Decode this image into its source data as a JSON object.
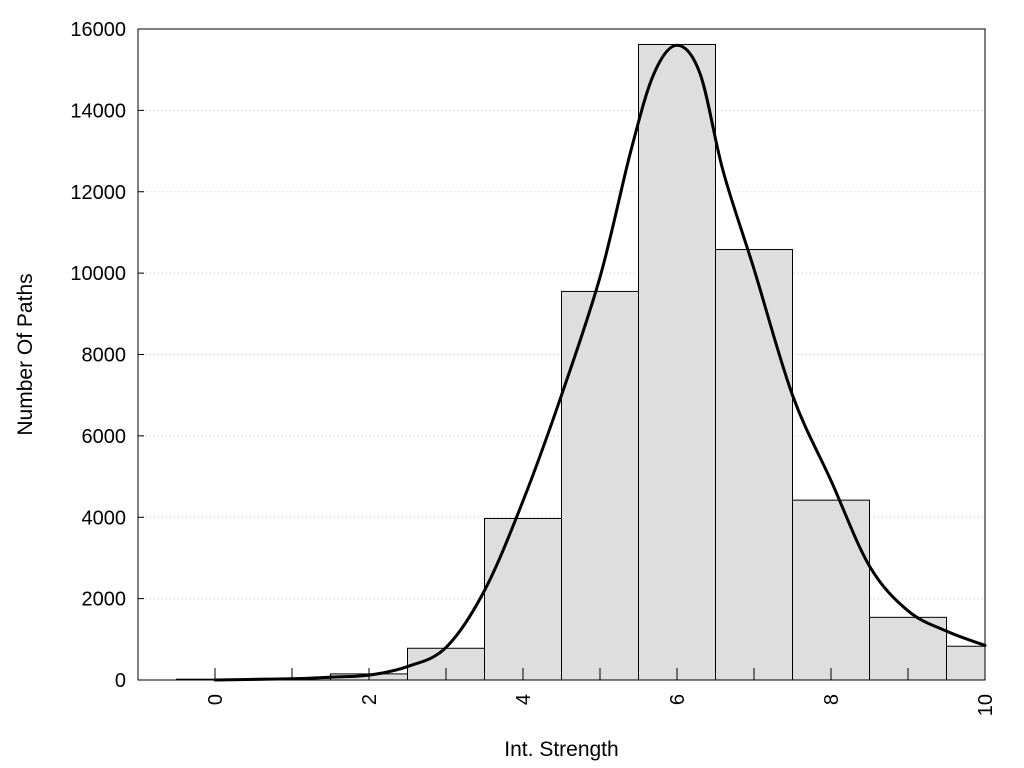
{
  "chart_data": {
    "type": "bar",
    "title": "",
    "xlabel": "Int. Strength",
    "ylabel": "Number Of Paths",
    "xlim": [
      -1,
      10
    ],
    "ylim": [
      0,
      16000
    ],
    "x_ticks": [
      0,
      2,
      4,
      6,
      8,
      10
    ],
    "y_ticks": [
      0,
      2000,
      4000,
      6000,
      8000,
      10000,
      12000,
      14000,
      16000
    ],
    "grid": "horizontal dotted",
    "legend": "none",
    "bins": [
      {
        "x": 0,
        "value": 20
      },
      {
        "x": 1,
        "value": 40
      },
      {
        "x": 2,
        "value": 150
      },
      {
        "x": 3,
        "value": 780
      },
      {
        "x": 4,
        "value": 3970
      },
      {
        "x": 5,
        "value": 9550
      },
      {
        "x": 6,
        "value": 15620
      },
      {
        "x": 7,
        "value": 10580
      },
      {
        "x": 8,
        "value": 4420
      },
      {
        "x": 9,
        "value": 1540
      },
      {
        "x": 10,
        "value": 830
      }
    ],
    "fit_curve": {
      "x": [
        0,
        1,
        1.5,
        2,
        2.5,
        3,
        3.5,
        4,
        4.5,
        5,
        5.4,
        5.7,
        6,
        6.3,
        6.6,
        7,
        7.5,
        8,
        8.5,
        9,
        9.5,
        10
      ],
      "y": [
        0,
        30,
        70,
        120,
        330,
        800,
        2200,
        4400,
        7000,
        9900,
        13000,
        14900,
        15600,
        14900,
        12500,
        10100,
        7000,
        4900,
        2800,
        1700,
        1200,
        850
      ]
    },
    "colors": {
      "bar_fill": "#dedede",
      "bar_stroke": "#000000",
      "curve": "#000000"
    }
  }
}
